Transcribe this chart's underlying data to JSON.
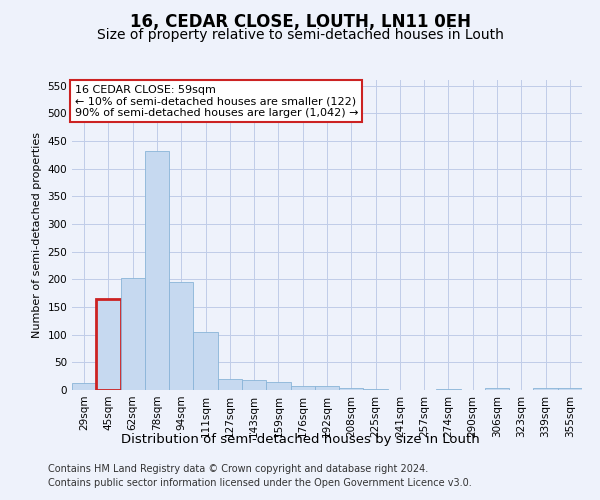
{
  "title": "16, CEDAR CLOSE, LOUTH, LN11 0EH",
  "subtitle": "Size of property relative to semi-detached houses in Louth",
  "xlabel": "Distribution of semi-detached houses by size in Louth",
  "ylabel": "Number of semi-detached properties",
  "categories": [
    "29sqm",
    "45sqm",
    "62sqm",
    "78sqm",
    "94sqm",
    "111sqm",
    "127sqm",
    "143sqm",
    "159sqm",
    "176sqm",
    "192sqm",
    "208sqm",
    "225sqm",
    "241sqm",
    "257sqm",
    "274sqm",
    "290sqm",
    "306sqm",
    "323sqm",
    "339sqm",
    "355sqm"
  ],
  "values": [
    13,
    165,
    202,
    432,
    196,
    105,
    20,
    18,
    15,
    7,
    7,
    4,
    1,
    0,
    0,
    1,
    0,
    3,
    0,
    3,
    3
  ],
  "bar_color": "#c6d9f0",
  "bar_edgecolor": "#8ab4d8",
  "highlight_bar_index": 1,
  "highlight_edgecolor": "#cc2222",
  "annotation_text": "16 CEDAR CLOSE: 59sqm\n← 10% of semi-detached houses are smaller (122)\n90% of semi-detached houses are larger (1,042) →",
  "annotation_box_color": "white",
  "annotation_box_edgecolor": "#cc2222",
  "ylim": [
    0,
    560
  ],
  "yticks": [
    0,
    50,
    100,
    150,
    200,
    250,
    300,
    350,
    400,
    450,
    500,
    550
  ],
  "footer_line1": "Contains HM Land Registry data © Crown copyright and database right 2024.",
  "footer_line2": "Contains public sector information licensed under the Open Government Licence v3.0.",
  "background_color": "#eef2fb",
  "grid_color": "#c0cce8",
  "title_fontsize": 12,
  "subtitle_fontsize": 10,
  "xlabel_fontsize": 9.5,
  "ylabel_fontsize": 8,
  "tick_fontsize": 7.5,
  "annotation_fontsize": 8,
  "footer_fontsize": 7
}
